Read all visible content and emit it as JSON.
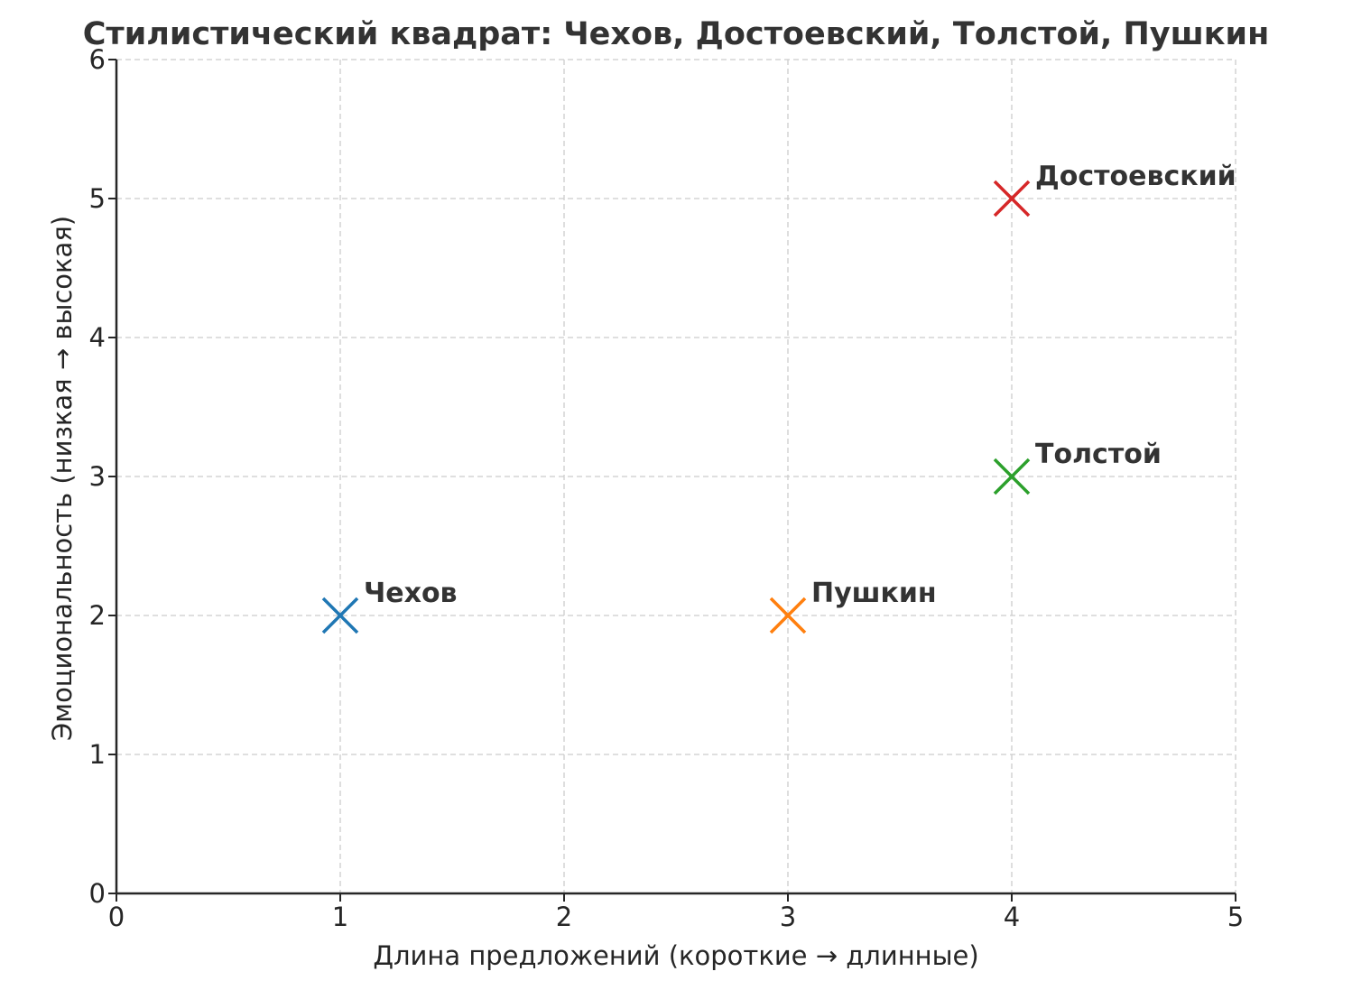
{
  "chart_data": {
    "type": "scatter",
    "title": "Стилистический квадрат: Чехов, Достоевский, Толстой, Пушкин",
    "xlabel": "Длина предложений (короткие → длинные)",
    "ylabel": "Эмоциональность (низкая → высокая)",
    "xlim": [
      0,
      5
    ],
    "ylim": [
      0,
      6
    ],
    "xticks": [
      "0",
      "1",
      "2",
      "3",
      "4",
      "5"
    ],
    "yticks": [
      "0",
      "1",
      "2",
      "3",
      "4",
      "5",
      "6"
    ],
    "grid": true,
    "legend": "none",
    "marker": "x",
    "points": [
      {
        "name": "Чехов",
        "x": 1,
        "y": 2,
        "color": "#1f77b4"
      },
      {
        "name": "Достоевский",
        "x": 4,
        "y": 5,
        "color": "#d62728"
      },
      {
        "name": "Толстой",
        "x": 4,
        "y": 3,
        "color": "#2ca02c"
      },
      {
        "name": "Пушкин",
        "x": 3,
        "y": 2,
        "color": "#ff7f0e"
      }
    ]
  }
}
